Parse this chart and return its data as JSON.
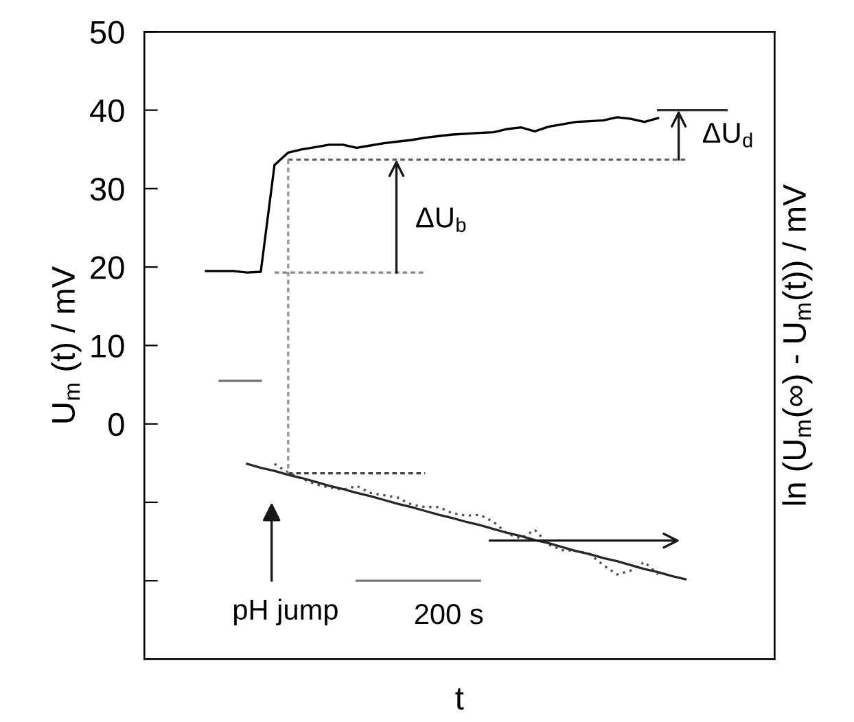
{
  "chart_data": {
    "type": "line",
    "xlabel": "t",
    "ylabel": "U$_{m}$ (t) / mV",
    "y2label": "ln (U$_{m}$(∞) - U$_{m}$(t)) / mV",
    "categories": [
      null,
      null,
      null,
      null,
      null,
      null,
      null,
      null,
      null,
      null,
      null,
      null,
      null,
      null,
      null,
      null,
      null,
      null,
      null,
      null,
      null,
      null,
      null,
      null,
      null,
      null,
      null,
      null,
      null,
      null,
      null,
      null,
      null,
      null,
      null,
      null,
      null,
      null,
      null,
      null,
      null,
      null,
      null,
      null,
      null,
      null
    ],
    "ylim": [
      -30,
      50
    ],
    "yticks": [
      {
        "value": -20,
        "label": null
      },
      {
        "value": -10,
        "label": null
      },
      0,
      10,
      20,
      30,
      40,
      50
    ],
    "tick_labels": "y",
    "series": [
      {
        "color": "#000000",
        "line_style": "solid",
        "values": [
          null,
          null,
          null,
          null,
          19.5,
          19.5,
          19.5,
          19.3,
          19.4,
          33,
          34.6,
          35.0,
          35.3,
          35.6,
          35.6,
          35.2,
          35.5,
          35.8,
          36.0,
          36.2,
          36.5,
          36.7,
          36.9,
          37.0,
          37.1,
          37.2,
          37.6,
          37.8,
          37.3,
          37.9,
          38.2,
          38.5,
          38.6,
          38.7,
          39.1,
          38.9,
          38.5,
          39.0,
          null,
          null,
          null,
          null,
          null,
          null,
          null,
          null
        ]
      },
      {
        "color": "#707070",
        "line_style": "solid",
        "values": [
          null,
          null,
          null,
          null,
          null,
          5.5,
          5.5,
          5.5,
          5.5,
          null,
          null,
          null,
          null,
          null,
          null,
          null,
          null,
          null,
          null,
          null,
          null,
          null,
          null,
          null,
          null,
          null,
          null,
          null,
          null,
          null,
          null,
          null,
          null,
          null,
          null,
          null,
          null,
          null,
          null,
          null,
          null,
          null,
          null,
          null,
          null,
          null
        ]
      },
      {
        "color": "#505050",
        "line_style": "dotted",
        "values": [
          null,
          null,
          null,
          null,
          null,
          null,
          null,
          null,
          null,
          -5.1,
          -6.2,
          -7.0,
          -7.7,
          -8.1,
          -8.4,
          -7.9,
          -8.8,
          -9.1,
          -9.4,
          -10.3,
          -10.6,
          -10.6,
          -11.4,
          -11.7,
          -11.6,
          -12.5,
          -14.0,
          -14.6,
          -13.5,
          -15.4,
          -16.1,
          -16.2,
          -16.6,
          -18.0,
          -19.2,
          -18.7,
          -17.6,
          -19.2,
          null,
          null,
          null,
          null,
          null,
          null,
          null,
          null
        ]
      },
      {
        "color": "#282828",
        "line_style": "solid",
        "values": [
          null,
          null,
          null,
          null,
          null,
          null,
          null,
          -5.1,
          -5.6,
          -6.0,
          -6.5,
          -6.9,
          -7.4,
          -7.9,
          -8.3,
          -8.8,
          -9.2,
          -9.7,
          -10.2,
          -10.6,
          -11.1,
          -11.6,
          -12.0,
          -12.5,
          -12.9,
          -13.4,
          -13.9,
          -14.3,
          -14.8,
          -15.2,
          -15.7,
          -16.2,
          -16.6,
          -17.1,
          -17.5,
          -18.0,
          -18.5,
          -18.9,
          -19.4,
          -19.8,
          null,
          null,
          null,
          null,
          null,
          null
        ]
      },
      {
        "color": "#606060",
        "line_style": "dashed",
        "values": [
          null,
          null,
          null,
          null,
          null,
          null,
          null,
          null,
          null,
          null,
          33.7,
          33.7,
          33.7,
          33.7,
          33.7,
          33.7,
          33.7,
          33.7,
          33.7,
          33.7,
          33.7,
          33.7,
          33.7,
          33.7,
          33.7,
          33.7,
          33.7,
          33.7,
          33.7,
          33.7,
          33.7,
          33.7,
          33.7,
          33.7,
          33.7,
          33.7,
          33.7,
          33.7,
          33.7,
          33.7,
          null,
          null,
          null,
          null,
          null,
          null
        ]
      },
      {
        "color": "#888888",
        "line_style": "dashed",
        "values": [
          null,
          null,
          null,
          null,
          null,
          null,
          null,
          null,
          null,
          19.3,
          19.3,
          19.3,
          19.3,
          19.3,
          19.3,
          19.3,
          19.3,
          19.3,
          19.3,
          19.3,
          19.3,
          null,
          null,
          null,
          null,
          null,
          null,
          null,
          null,
          null,
          null,
          null,
          null,
          null,
          null,
          null,
          null,
          null,
          null,
          null,
          null,
          null,
          null,
          null,
          null,
          null
        ]
      },
      {
        "color": "#404040",
        "line_style": "dashed",
        "values": [
          null,
          null,
          null,
          null,
          null,
          null,
          null,
          null,
          null,
          null,
          -6.3,
          -6.3,
          -6.3,
          -6.3,
          -6.3,
          -6.3,
          -6.3,
          -6.3,
          -6.3,
          -6.3,
          -6.3,
          null,
          null,
          null,
          null,
          null,
          null,
          null,
          null,
          null,
          null,
          null,
          null,
          null,
          null,
          null,
          null,
          null,
          null,
          null,
          null,
          null,
          null,
          null,
          null,
          null
        ]
      },
      {
        "color": "#303030",
        "line_style": "solid",
        "values": [
          null,
          null,
          null,
          null,
          null,
          null,
          null,
          null,
          null,
          null,
          null,
          null,
          null,
          null,
          null,
          null,
          null,
          null,
          null,
          null,
          null,
          null,
          null,
          null,
          null,
          null,
          null,
          null,
          null,
          null,
          null,
          null,
          null,
          null,
          null,
          null,
          null,
          40,
          40,
          40,
          40,
          40,
          40,
          null,
          null,
          null
        ]
      },
      {
        "color": "#787878",
        "line_style": "solid",
        "values": [
          null,
          null,
          null,
          null,
          null,
          null,
          null,
          null,
          null,
          null,
          null,
          null,
          null,
          null,
          null,
          -20,
          -20,
          -20,
          -20,
          -20,
          -20,
          -20,
          -20,
          -20,
          -20,
          null,
          null,
          null,
          null,
          null,
          null,
          null,
          null,
          null,
          null,
          null,
          null,
          null,
          null,
          null,
          null,
          null,
          null,
          null,
          null,
          null
        ]
      }
    ],
    "annotations": [
      "ΔU$_{b}$",
      "ΔU$_{d}$",
      "pH jump",
      "200 s"
    ]
  }
}
